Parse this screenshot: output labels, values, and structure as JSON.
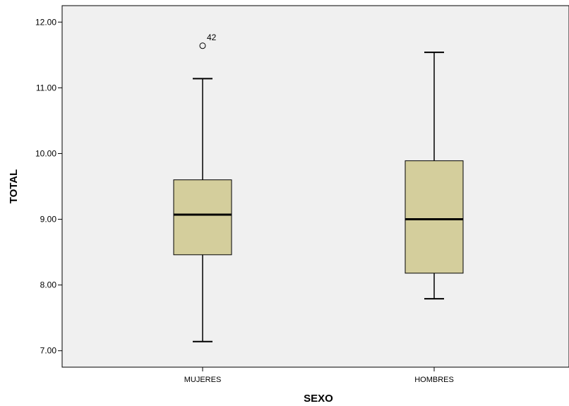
{
  "chart_data": {
    "type": "boxplot",
    "xlabel": "SEXO",
    "ylabel": "TOTAL",
    "ylim": [
      6.75,
      12.25
    ],
    "yticks": [
      7.0,
      8.0,
      9.0,
      10.0,
      11.0,
      12.0
    ],
    "ytick_labels": [
      "7.00",
      "8.00",
      "9.00",
      "10.00",
      "11.00",
      "12.00"
    ],
    "categories": [
      "MUJERES",
      "HOMBRES"
    ],
    "boxes": [
      {
        "category": "MUJERES",
        "whisker_low": 7.14,
        "q1": 8.46,
        "median": 9.07,
        "q3": 9.6,
        "whisker_high": 11.14,
        "outliers": [
          {
            "value": 11.64,
            "label": "42"
          }
        ]
      },
      {
        "category": "HOMBRES",
        "whisker_low": 7.79,
        "q1": 8.18,
        "median": 9.0,
        "q3": 9.89,
        "whisker_high": 11.54,
        "outliers": []
      }
    ],
    "grid": false,
    "legend": "none",
    "colors": {
      "box_fill": "#d4ce9c",
      "plot_background": "#f0f0f0",
      "line": "#000000"
    }
  }
}
